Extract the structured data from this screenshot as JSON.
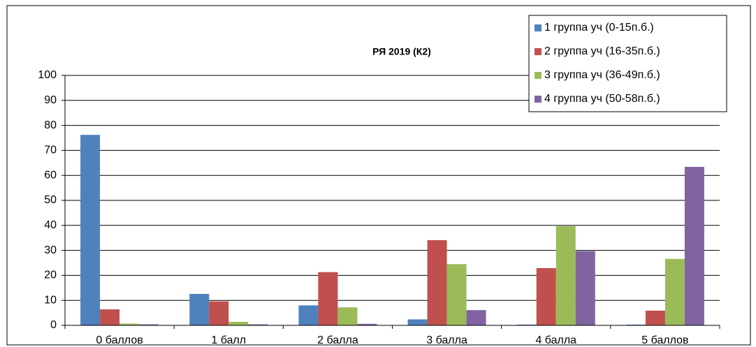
{
  "chart_data": {
    "type": "bar",
    "title": "РЯ 2019 (К2)",
    "categories": [
      "0 баллов",
      "1 балл",
      "2 балла",
      "3 балла",
      "4 балла",
      "5 баллов"
    ],
    "series": [
      {
        "name": "1 группа уч (0-15п.б.)",
        "color": "#4f81bd",
        "values": [
          76.2,
          12.6,
          8.0,
          2.4,
          0.3,
          0.3
        ]
      },
      {
        "name": "2 группа уч (16-35п.б.)",
        "color": "#c0504d",
        "values": [
          6.4,
          9.6,
          21.3,
          34.1,
          22.9,
          5.9
        ]
      },
      {
        "name": "3 группа уч (36-49п.б.)",
        "color": "#9bbb59",
        "values": [
          0.7,
          1.4,
          7.2,
          24.5,
          39.7,
          26.6
        ]
      },
      {
        "name": "4 группа уч (50-58п.б.)",
        "color": "#8064a2",
        "values": [
          0.4,
          0.4,
          0.6,
          6.1,
          29.7,
          63.4
        ]
      }
    ],
    "ylim": [
      0,
      100
    ],
    "yticks": [
      0,
      10,
      20,
      30,
      40,
      50,
      60,
      70,
      80,
      90,
      100
    ],
    "grid": true,
    "legend": "top-right"
  }
}
